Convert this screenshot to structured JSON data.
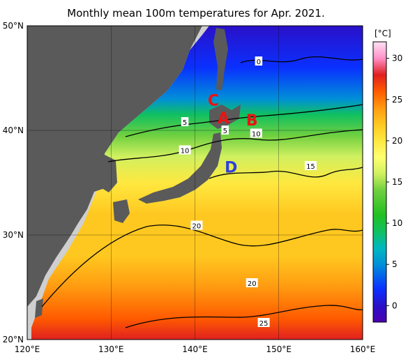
{
  "chart_data": {
    "type": "heatmap",
    "title": "Monthly mean 100m temperatures for Apr. 2021.",
    "x_ticks": [
      "120°E",
      "130°E",
      "140°E",
      "150°E",
      "160°E"
    ],
    "y_ticks": [
      "50°N",
      "40°N",
      "30°N",
      "20°N"
    ],
    "xlim": [
      120,
      160
    ],
    "ylim": [
      20,
      50
    ],
    "colorbar": {
      "unit": "[°C]",
      "range": [
        -2,
        32
      ],
      "ticks": [
        0,
        5,
        10,
        15,
        20,
        25,
        30
      ],
      "stops": [
        {
          "value": -2,
          "color": "#4a00b0"
        },
        {
          "value": 0,
          "color": "#2a10c8"
        },
        {
          "value": 2,
          "color": "#0a30ff"
        },
        {
          "value": 5,
          "color": "#0090d8"
        },
        {
          "value": 7,
          "color": "#00b8c0"
        },
        {
          "value": 9,
          "color": "#10c060"
        },
        {
          "value": 11,
          "color": "#20c020"
        },
        {
          "value": 14,
          "color": "#70d040"
        },
        {
          "value": 16,
          "color": "#d0f060"
        },
        {
          "value": 18,
          "color": "#ffff70"
        },
        {
          "value": 20,
          "color": "#ffe840"
        },
        {
          "value": 22,
          "color": "#ffc820"
        },
        {
          "value": 24,
          "color": "#ff9a10"
        },
        {
          "value": 26,
          "color": "#ff5a00"
        },
        {
          "value": 28,
          "color": "#e02020"
        },
        {
          "value": 30,
          "color": "#ff90c8"
        },
        {
          "value": 32,
          "color": "#ffe0f4"
        }
      ]
    },
    "contour_labels": [
      {
        "text": "0",
        "lon": 147.6,
        "lat": 46.6
      },
      {
        "text": "5",
        "lon": 138.8,
        "lat": 40.8
      },
      {
        "text": "5",
        "lon": 143.6,
        "lat": 40.0
      },
      {
        "text": "10",
        "lon": 138.8,
        "lat": 38.1
      },
      {
        "text": "10",
        "lon": 147.3,
        "lat": 39.7
      },
      {
        "text": "15",
        "lon": 153.8,
        "lat": 36.6
      },
      {
        "text": "20",
        "lon": 140.2,
        "lat": 30.9
      },
      {
        "text": "20",
        "lon": 146.8,
        "lat": 25.4
      },
      {
        "text": "25",
        "lon": 148.2,
        "lat": 21.6
      }
    ],
    "markers": [
      {
        "text": "C",
        "lon": 142.2,
        "lat": 42.9,
        "color": "#ee1111"
      },
      {
        "text": "A",
        "lon": 143.4,
        "lat": 41.2,
        "color": "#ee1111"
      },
      {
        "text": "B",
        "lon": 146.8,
        "lat": 41.0,
        "color": "#ee1111"
      },
      {
        "text": "D",
        "lon": 144.3,
        "lat": 36.5,
        "color": "#3040d8"
      }
    ],
    "land_color": "#5a5a5a",
    "outside_color": "#cfcfcf",
    "grid": true
  }
}
